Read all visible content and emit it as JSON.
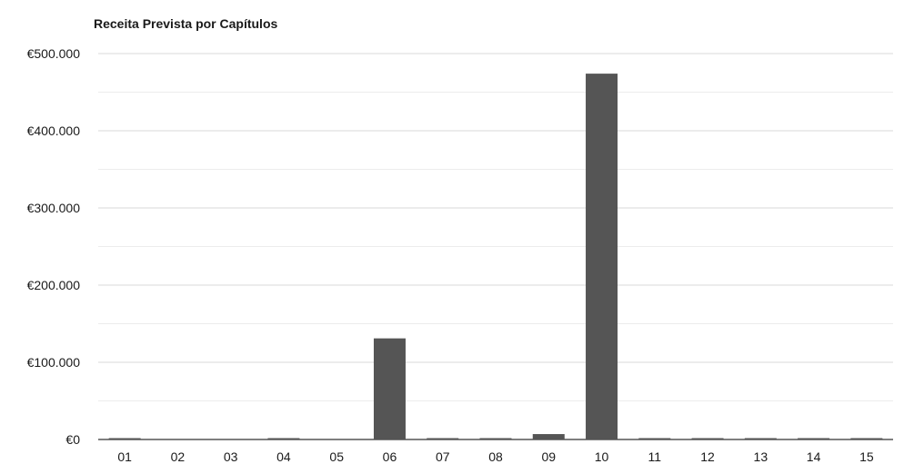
{
  "chart_data": {
    "type": "bar",
    "title": "Receita Prevista por Capítulos",
    "xlabel": "",
    "ylabel": "",
    "categories": [
      "01",
      "02",
      "03",
      "04",
      "05",
      "06",
      "07",
      "08",
      "09",
      "10",
      "11",
      "12",
      "13",
      "14",
      "15"
    ],
    "values": [
      1500,
      0,
      0,
      1500,
      0,
      131000,
      1000,
      1000,
      7000,
      474000,
      500,
      500,
      500,
      500,
      1000
    ],
    "ylim": [
      0,
      500000
    ],
    "yticks": [
      0,
      100000,
      200000,
      300000,
      400000,
      500000
    ],
    "ytick_labels": [
      "€0",
      "€100.000",
      "€200.000",
      "€300.000",
      "€400.000",
      "€500.000"
    ],
    "grid": true,
    "bar_color": "#555555",
    "grid_color": "#d9d9d9"
  }
}
